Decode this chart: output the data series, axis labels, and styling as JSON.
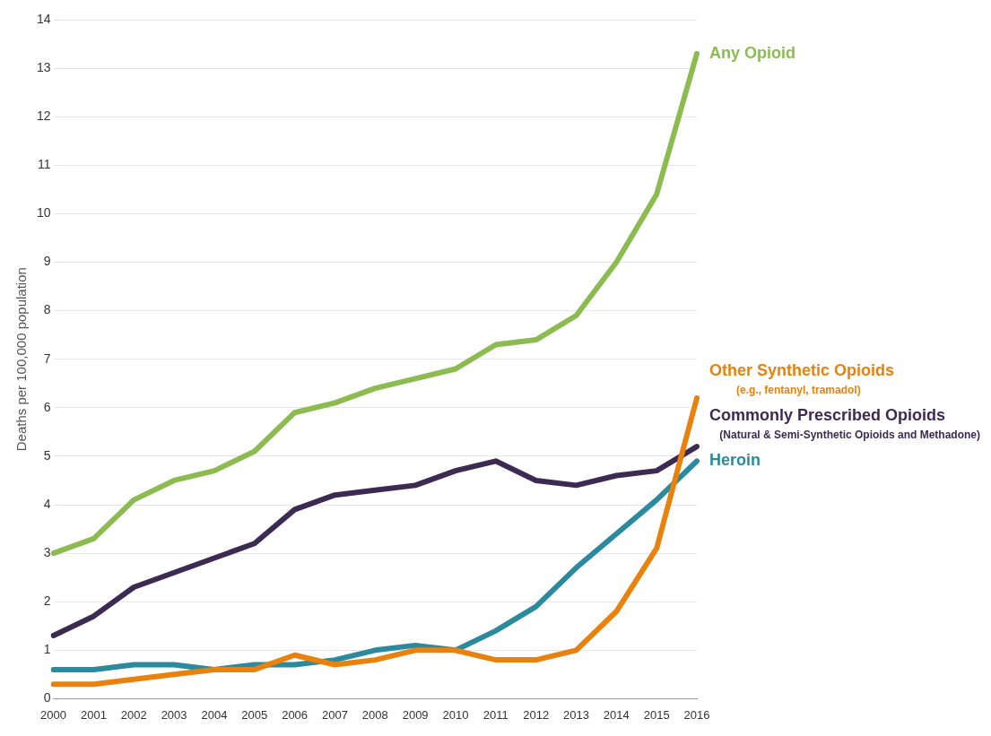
{
  "chart_data": {
    "type": "line",
    "ylabel": "Deaths per 100,000 population",
    "categories": [
      "2000",
      "2001",
      "2002",
      "2003",
      "2004",
      "2005",
      "2006",
      "2007",
      "2008",
      "2009",
      "2010",
      "2011",
      "2012",
      "2013",
      "2014",
      "2015",
      "2016"
    ],
    "series": [
      {
        "name": "Any Opioid",
        "color": "#8cbb50",
        "values": [
          3.0,
          3.3,
          4.1,
          4.5,
          4.7,
          5.1,
          5.9,
          6.1,
          6.4,
          6.6,
          6.8,
          7.3,
          7.4,
          7.9,
          9.0,
          10.4,
          13.3
        ]
      },
      {
        "name": "Other Synthetic Opioids",
        "color": "#e8820c",
        "values": [
          0.3,
          0.3,
          0.4,
          0.5,
          0.6,
          0.6,
          0.9,
          0.7,
          0.8,
          1.0,
          1.0,
          0.8,
          0.8,
          1.0,
          1.8,
          3.1,
          6.2
        ]
      },
      {
        "name": "Commonly Prescribed Opioids",
        "color": "#3d2a53",
        "values": [
          1.3,
          1.7,
          2.3,
          2.6,
          2.9,
          3.2,
          3.9,
          4.2,
          4.3,
          4.4,
          4.7,
          4.9,
          4.5,
          4.4,
          4.6,
          4.7,
          5.2
        ]
      },
      {
        "name": "Heroin",
        "color": "#2b8a9e",
        "values": [
          0.6,
          0.6,
          0.7,
          0.7,
          0.6,
          0.7,
          0.7,
          0.8,
          1.0,
          1.1,
          1.0,
          1.4,
          1.9,
          2.7,
          3.4,
          4.1,
          4.9
        ]
      }
    ],
    "annotations": [
      "(e.g., fentanyl, tramadol)",
      "(Natural & Semi-Synthetic Opioids and Methadone)"
    ],
    "ylim": [
      0,
      14
    ],
    "yticks": [
      0,
      1,
      2,
      3,
      4,
      5,
      6,
      7,
      8,
      9,
      10,
      11,
      12,
      13,
      14
    ],
    "grid": "y",
    "legend": false,
    "marker": "none",
    "line_style": "solid"
  }
}
